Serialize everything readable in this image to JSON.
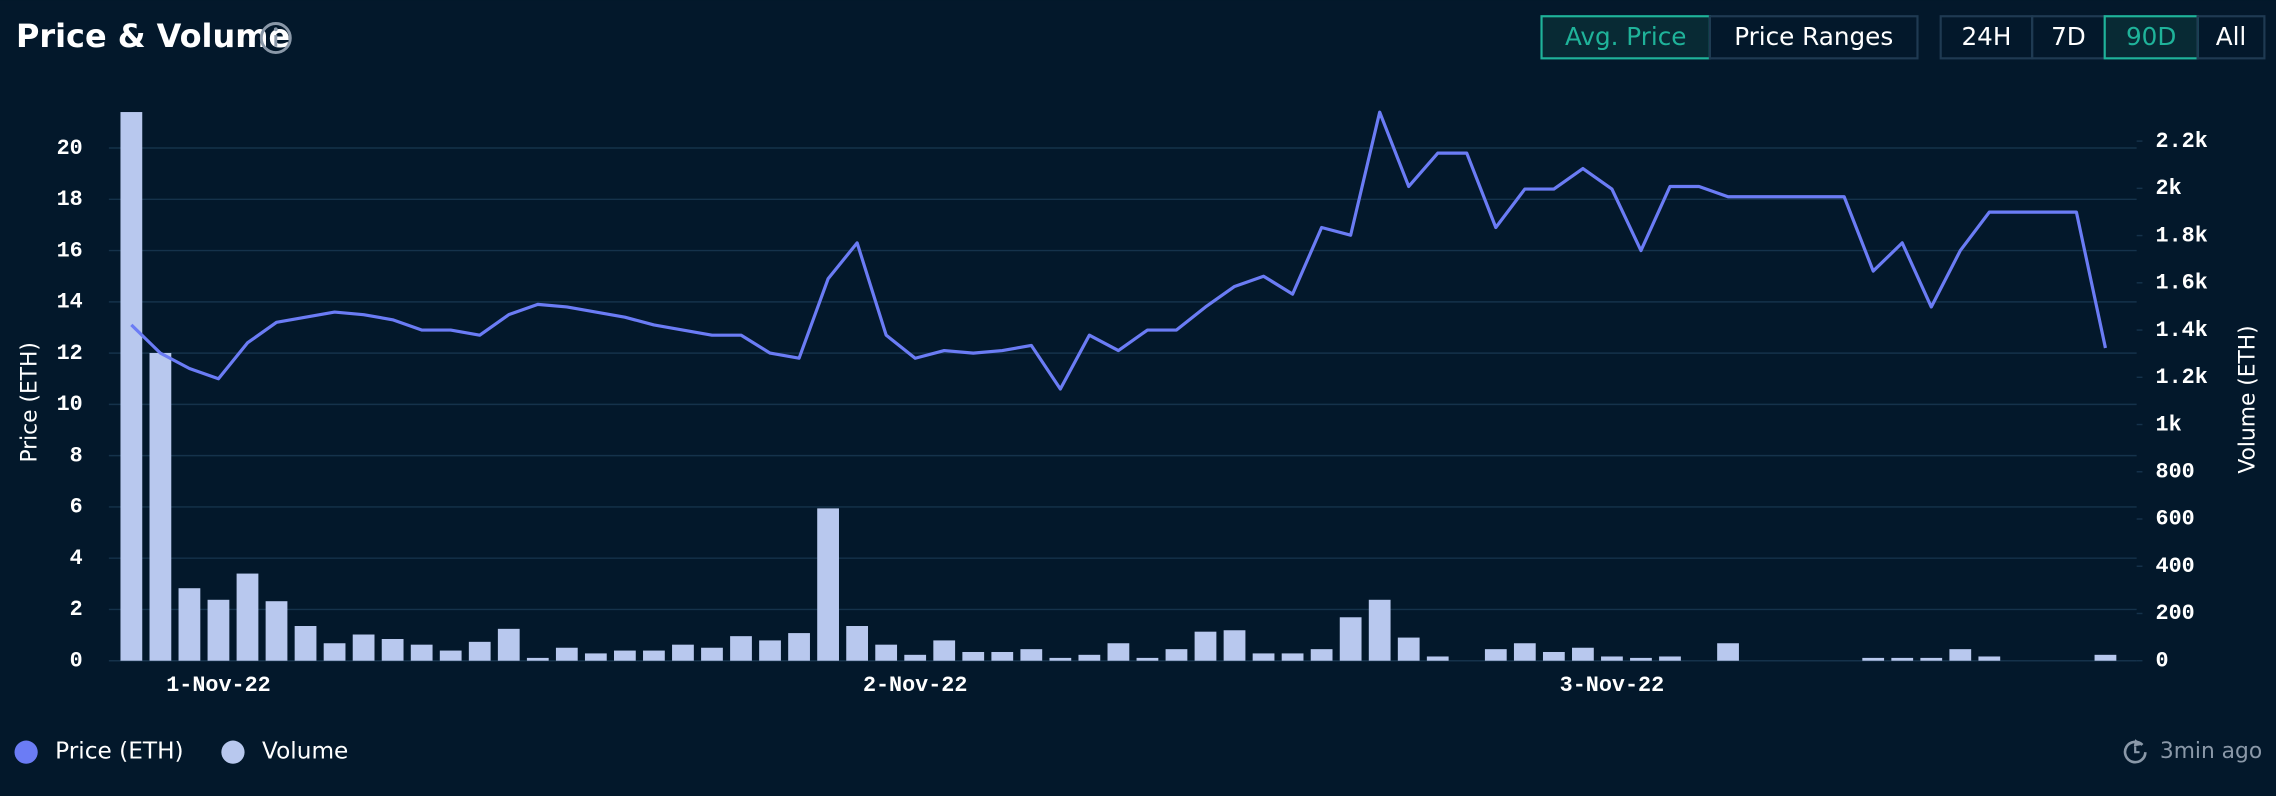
{
  "header": {
    "title": "Price & Volume"
  },
  "toolbar": {
    "views": [
      "Avg. Price",
      "Price Ranges"
    ],
    "ranges": [
      "24H",
      "7D",
      "90D",
      "All"
    ]
  },
  "updated": "3min ago",
  "chart_data": {
    "type": "combo",
    "y_label": "Price (ETH)",
    "y2_label": "Volume (ETH)",
    "categories": [
      null,
      null,
      null,
      "1-Nov-22",
      null,
      null,
      null,
      null,
      null,
      null,
      null,
      null,
      null,
      null,
      null,
      null,
      null,
      null,
      null,
      null,
      null,
      null,
      null,
      null,
      null,
      null,
      null,
      "2-Nov-22",
      null,
      null,
      null,
      null,
      null,
      null,
      null,
      null,
      null,
      null,
      null,
      null,
      null,
      null,
      null,
      null,
      null,
      null,
      null,
      null,
      null,
      null,
      null,
      "3-Nov-22",
      null,
      null,
      null,
      null,
      null,
      null,
      null,
      null,
      null,
      null,
      null,
      null,
      null,
      null,
      null,
      null,
      null
    ],
    "series": [
      {
        "name": "Price (ETH)",
        "type": "line",
        "color": "#6b7cf5",
        "values": [
          13.1,
          12.0,
          11.4,
          11.0,
          12.4,
          13.2,
          13.4,
          13.6,
          13.5,
          13.3,
          12.9,
          12.9,
          12.7,
          13.5,
          13.9,
          13.8,
          13.6,
          13.4,
          13.1,
          12.9,
          12.7,
          12.7,
          12.0,
          11.8,
          14.9,
          16.3,
          12.7,
          11.8,
          12.1,
          12.0,
          12.1,
          12.3,
          10.6,
          12.7,
          12.1,
          12.9,
          12.9,
          13.8,
          14.6,
          15.0,
          14.3,
          16.9,
          16.6,
          21.4,
          18.5,
          19.8,
          19.8,
          16.9,
          18.4,
          18.4,
          19.2,
          18.4,
          16.0,
          18.5,
          18.5,
          18.1,
          18.1,
          18.1,
          18.1,
          18.1,
          15.2,
          16.3,
          13.8,
          16.0,
          17.5,
          17.5,
          17.5,
          17.5,
          12.2
        ]
      },
      {
        "name": "Volume",
        "type": "bar",
        "axis": "y2",
        "color": "#b8c8ee",
        "values": [
          2323,
          1303,
          307,
          258,
          369,
          252,
          147,
          74,
          111,
          92,
          68,
          43,
          80,
          135,
          12,
          55,
          31,
          43,
          43,
          68,
          55,
          104,
          86,
          117,
          645,
          147,
          68,
          25,
          86,
          37,
          37,
          49,
          12,
          25,
          74,
          12,
          49,
          123,
          129,
          31,
          31,
          49,
          184,
          258,
          98,
          18,
          0,
          49,
          74,
          37,
          55,
          18,
          12,
          18,
          0,
          74,
          0,
          0,
          0,
          0,
          12,
          12,
          12,
          49,
          18,
          0,
          0,
          0,
          25
        ]
      }
    ],
    "ylim": [
      0,
      21.8
    ],
    "yticks": [
      0,
      2,
      4,
      6,
      8,
      10,
      12,
      14,
      16,
      18,
      20
    ],
    "y2lim": [
      0,
      2366
    ],
    "y2ticks": [
      0,
      200,
      400,
      600,
      800,
      {
        "value": 1000,
        "label": "1k"
      },
      {
        "value": 1200,
        "label": "1.2k"
      },
      {
        "value": 1400,
        "label": "1.4k"
      },
      {
        "value": 1600,
        "label": "1.6k"
      },
      {
        "value": 1800,
        "label": "1.8k"
      },
      {
        "value": 2000,
        "label": "2k"
      },
      {
        "value": 2200,
        "label": "2.2k"
      }
    ],
    "grid": true,
    "legend": "bottom-left"
  }
}
